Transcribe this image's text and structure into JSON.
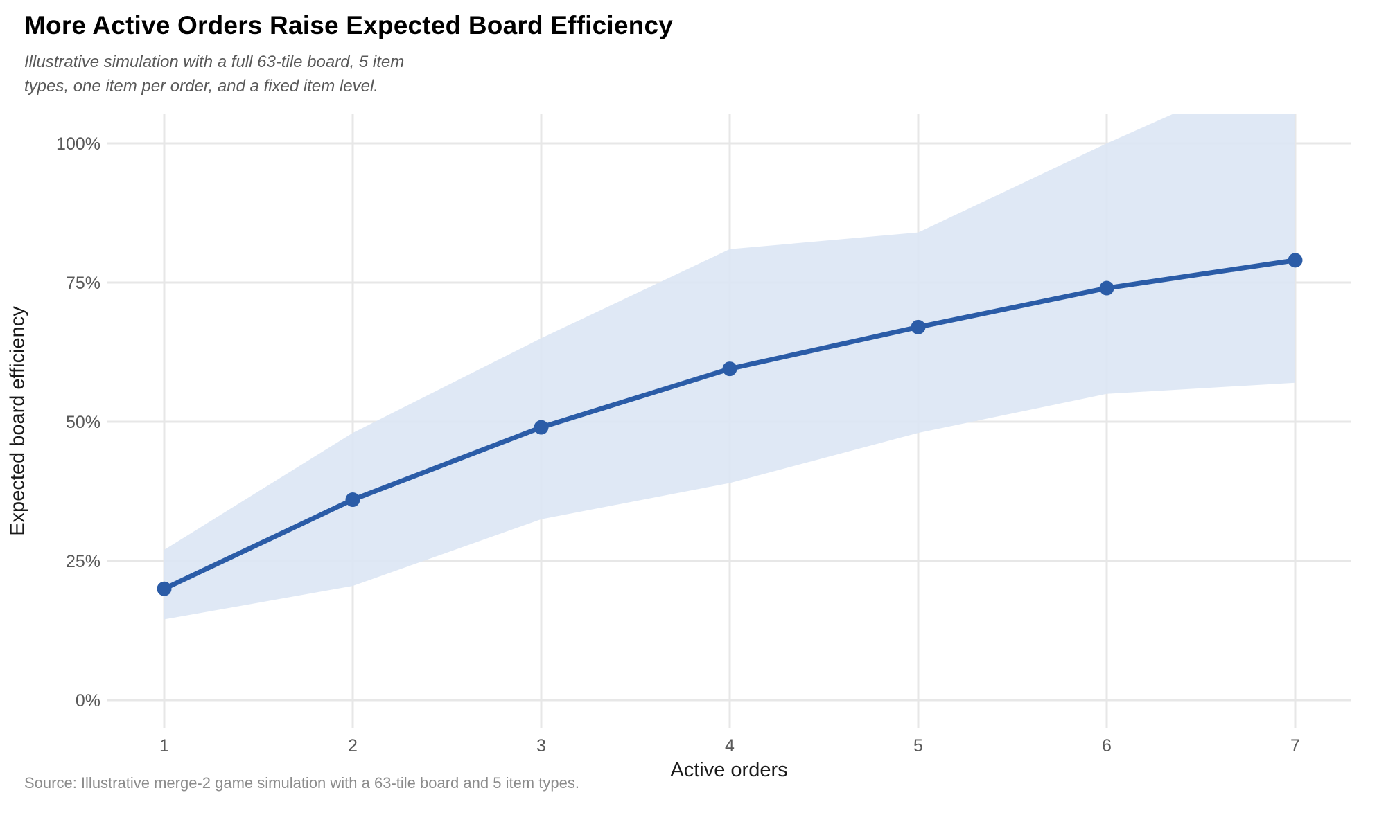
{
  "chart_data": {
    "type": "line",
    "title": "More Active Orders Raise Expected Board Efficiency",
    "subtitle_lines": [
      "Illustrative simulation with a full 63-tile board, 5 item",
      "types, one item per order, and a fixed item level."
    ],
    "source_note": "Source: Illustrative merge-2 game simulation with a 63-tile board and 5 item types.",
    "xlabel": "Active orders",
    "ylabel": "Expected board efficiency",
    "x": [
      1,
      2,
      3,
      4,
      5,
      6,
      7
    ],
    "x_tick_labels": [
      "1",
      "2",
      "3",
      "4",
      "5",
      "6",
      "7"
    ],
    "y_ticks": [
      0,
      25,
      50,
      75,
      100
    ],
    "y_tick_labels": [
      "0%",
      "25%",
      "50%",
      "75%",
      "100%"
    ],
    "ylim": [
      0,
      100
    ],
    "series": [
      {
        "name": "Expected board efficiency (mean)",
        "values": [
          20,
          36,
          49,
          59.5,
          67,
          74,
          79
        ]
      }
    ],
    "band": {
      "name": "uncertainty-band",
      "lower": [
        14.5,
        20.5,
        32.5,
        39,
        48,
        55,
        57
      ],
      "upper": [
        27,
        48,
        65,
        81,
        84,
        100,
        115
      ],
      "clipped_at_top_percent": 105
    },
    "grid": true,
    "legend": false,
    "colors": {
      "line": "#2b5ca7",
      "band": "#dce6f4",
      "grid": "#e7e7e7",
      "title": "#000000",
      "subtitle": "#595959",
      "tick": "#595959",
      "axis_title": "#1a1a1a",
      "source": "#8c8c8c"
    }
  }
}
